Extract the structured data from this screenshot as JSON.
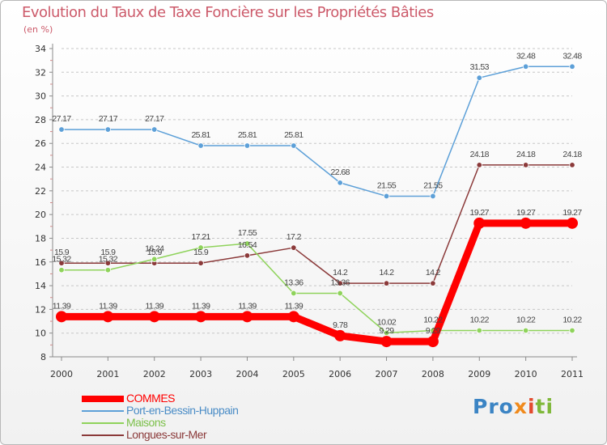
{
  "chart_data": {
    "type": "line",
    "title": "Evolution du Taux de Taxe Foncière sur les Propriétés Bâties",
    "ylabel": "(en %)",
    "xlabel": "",
    "ylim": [
      8,
      34
    ],
    "yticks": [
      8,
      10,
      12,
      14,
      16,
      18,
      20,
      22,
      24,
      26,
      28,
      30,
      32,
      34
    ],
    "categories": [
      "2000",
      "2001",
      "2002",
      "2003",
      "2004",
      "2005",
      "2006",
      "2007",
      "2008",
      "2009",
      "2010",
      "2011"
    ],
    "series": [
      {
        "name": "COMMES",
        "color": "#ff0000",
        "values": [
          11.39,
          11.39,
          11.39,
          11.39,
          11.39,
          11.39,
          9.78,
          9.29,
          9.29,
          19.27,
          19.27,
          19.27
        ],
        "labels": [
          "11.39",
          "11.39",
          "11.39",
          "11.39",
          "11.39",
          "11.39",
          "9.78",
          "9.29",
          "9.29",
          "19.27",
          "19.27",
          "19.27"
        ]
      },
      {
        "name": "Port-en-Bessin-Huppain",
        "color": "#5da0d8",
        "values": [
          27.17,
          27.17,
          27.17,
          25.81,
          25.81,
          25.81,
          22.68,
          21.55,
          21.55,
          31.53,
          32.48,
          32.48
        ],
        "labels": [
          "27.17",
          "27.17",
          "27.17",
          "25.81",
          "25.81",
          "25.81",
          "22.68",
          "21.55",
          "21.55",
          "31.53",
          "32.48",
          "32.48"
        ]
      },
      {
        "name": "Maisons",
        "color": "#8fd35b",
        "values": [
          15.32,
          15.32,
          16.24,
          17.21,
          17.55,
          13.36,
          13.36,
          10.02,
          10.22,
          10.22,
          10.22,
          10.22
        ],
        "labels": [
          "15.32",
          "15.32",
          "16.24",
          "17.21",
          "17.55",
          "13.36",
          "13.36",
          "10.02",
          "10.22",
          "10.22",
          "10.22",
          "10.22"
        ]
      },
      {
        "name": "Longues-sur-Mer",
        "color": "#8b3a3a",
        "values": [
          15.9,
          15.9,
          15.9,
          15.9,
          16.54,
          17.2,
          14.2,
          14.2,
          14.2,
          24.18,
          24.18,
          24.18
        ],
        "labels": [
          "15.9",
          "15.9",
          "15.9",
          "15.9",
          "16.54",
          "17.2",
          "14.2",
          "14.2",
          "14.2",
          "24.18",
          "24.18",
          "24.18"
        ]
      }
    ]
  },
  "legend": {
    "items": [
      {
        "label": "COMMES",
        "color": "#ff0000"
      },
      {
        "label": "Port-en-Bessin-Huppain",
        "color": "#5da0d8"
      },
      {
        "label": "Maisons",
        "color": "#8fd35b"
      },
      {
        "label": "Longues-sur-Mer",
        "color": "#8b3a3a"
      }
    ]
  },
  "logo": {
    "p1": "Pro",
    "p2": "x",
    "p3": "i",
    "p4": "ti"
  }
}
